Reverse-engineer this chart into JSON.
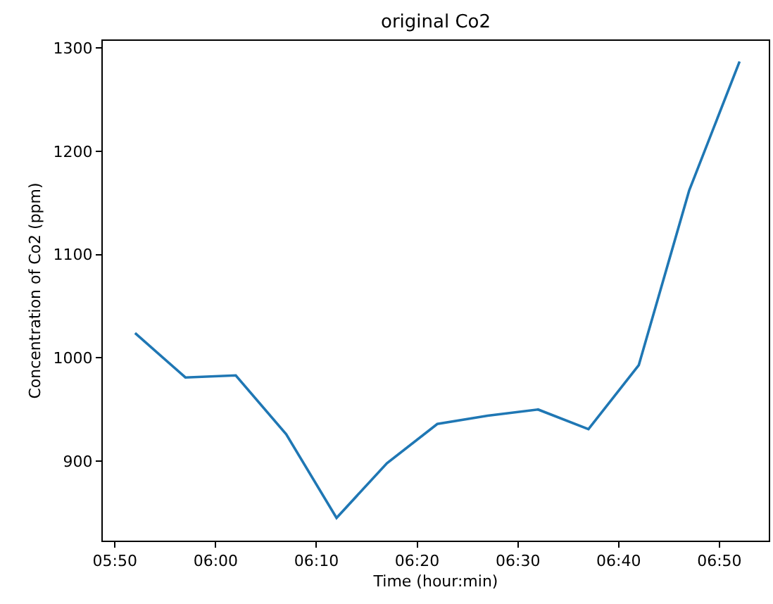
{
  "chart_data": {
    "type": "line",
    "title": "original Co2",
    "xlabel": "Time (hour:min)",
    "ylabel": "Concentration of Co2 (ppm)",
    "x": [
      5.8667,
      5.95,
      6.0333,
      6.1167,
      6.2,
      6.2833,
      6.3667,
      6.45,
      6.5333,
      6.6167,
      6.7,
      6.7833,
      6.8667
    ],
    "series": [
      {
        "color": "#1f77b4",
        "values": [
          1024,
          981,
          983,
          926,
          845,
          898,
          936,
          944,
          950,
          931,
          993,
          1162,
          1287
        ]
      }
    ],
    "xlim": [
      5.8133,
      6.915
    ],
    "xticks": [
      {
        "value": 5.8333,
        "label": "05:50"
      },
      {
        "value": 6.0,
        "label": "06:00"
      },
      {
        "value": 6.1667,
        "label": "06:10"
      },
      {
        "value": 6.3333,
        "label": "06:20"
      },
      {
        "value": 6.5,
        "label": "06:30"
      },
      {
        "value": 6.6667,
        "label": "06:40"
      },
      {
        "value": 6.8333,
        "label": "06:50"
      }
    ],
    "ylim": [
      823,
      1307
    ],
    "yticks": [
      900,
      1000,
      1100,
      1200,
      1300
    ],
    "marker": "none",
    "line_style": "solid"
  }
}
